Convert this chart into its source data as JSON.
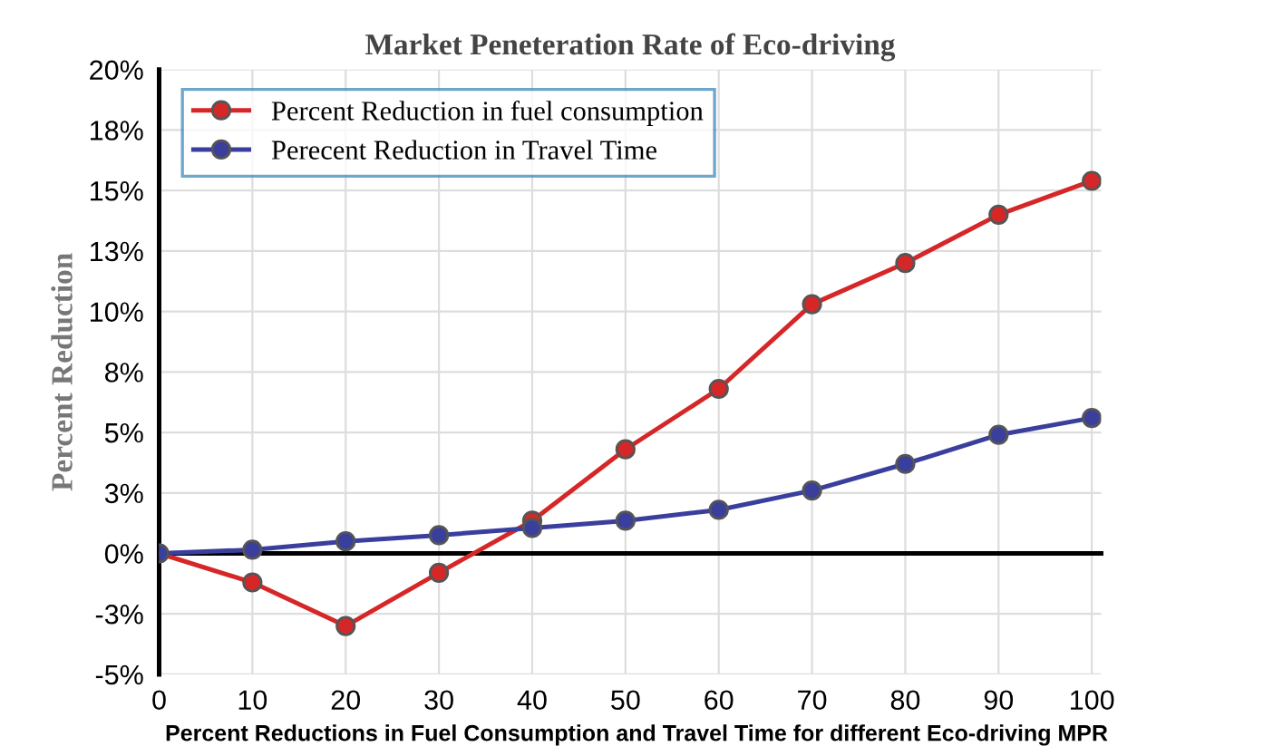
{
  "chart_data": {
    "type": "line",
    "title": "Market Peneteration Rate of Eco-driving",
    "xlabel": "Percent Reductions in Fuel Consumption and Travel Time for different Eco-driving MPR",
    "ylabel": "Percent Reduction",
    "x": [
      0,
      10,
      20,
      30,
      40,
      50,
      60,
      70,
      80,
      90,
      100
    ],
    "series": [
      {
        "name": "Percent Reduction in fuel consumption",
        "color": "#d62728",
        "values": [
          0,
          -1.2,
          -3.0,
          -0.8,
          1.35,
          4.3,
          6.8,
          10.3,
          12.0,
          14.0,
          15.4
        ]
      },
      {
        "name": "Perecent Reduction in Travel Time",
        "color": "#3a3f9e",
        "values": [
          0,
          0.15,
          0.5,
          0.75,
          1.05,
          1.35,
          1.8,
          2.6,
          3.7,
          4.9,
          5.6
        ]
      }
    ],
    "xlim": [
      0,
      101
    ],
    "xticks": [
      0,
      10,
      20,
      30,
      40,
      50,
      60,
      70,
      80,
      90,
      100
    ],
    "ylim": [
      -5,
      20
    ],
    "yticks": [
      {
        "value": -5,
        "label": "-5%"
      },
      {
        "value": -2.5,
        "label": "-3%"
      },
      {
        "value": 0,
        "label": "0%"
      },
      {
        "value": 2.5,
        "label": "3%"
      },
      {
        "value": 5,
        "label": "5%"
      },
      {
        "value": 7.5,
        "label": "8%"
      },
      {
        "value": 10,
        "label": "10%"
      },
      {
        "value": 12.5,
        "label": "13%"
      },
      {
        "value": 15,
        "label": "15%"
      },
      {
        "value": 17.5,
        "label": "18%"
      },
      {
        "value": 20,
        "label": "20%"
      }
    ],
    "grid": true,
    "legend": "top left",
    "marker": "circle",
    "line_style": "solid"
  }
}
